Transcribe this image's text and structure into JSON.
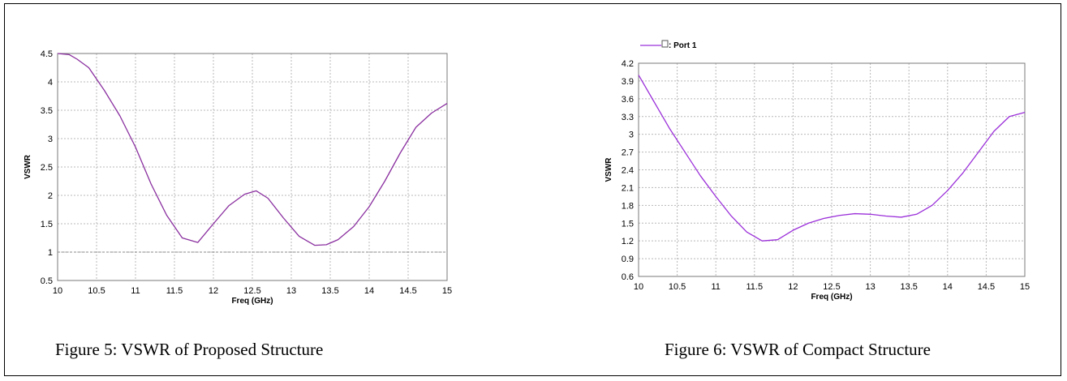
{
  "chart_data": [
    {
      "type": "line",
      "title": "",
      "xlabel": "Freq (GHz)",
      "ylabel": "VSWR",
      "xlim": [
        10,
        15
      ],
      "ylim": [
        0.5,
        4.5
      ],
      "xticks": [
        "10",
        "10.5",
        "11",
        "11.5",
        "12",
        "12.5",
        "13",
        "13.5",
        "14",
        "14.5",
        "15"
      ],
      "yticks": [
        "0.5",
        "1",
        "1.5",
        "2",
        "2.5",
        "3",
        "3.5",
        "4",
        "4.5"
      ],
      "grid": true,
      "reference_line_y": 1,
      "legend": null,
      "series": [
        {
          "color": "#8a2f9f",
          "x": [
            10,
            10.15,
            10.25,
            10.4,
            10.5,
            10.6,
            10.8,
            11.0,
            11.2,
            11.4,
            11.6,
            11.8,
            12.0,
            12.2,
            12.4,
            12.55,
            12.7,
            12.9,
            13.1,
            13.3,
            13.45,
            13.6,
            13.8,
            14.0,
            14.2,
            14.4,
            14.6,
            14.8,
            15.0
          ],
          "y": [
            4.5,
            4.48,
            4.4,
            4.25,
            4.05,
            3.85,
            3.4,
            2.85,
            2.2,
            1.65,
            1.25,
            1.17,
            1.5,
            1.82,
            2.02,
            2.08,
            1.95,
            1.6,
            1.28,
            1.12,
            1.13,
            1.22,
            1.45,
            1.8,
            2.25,
            2.75,
            3.2,
            3.45,
            3.62
          ]
        }
      ]
    },
    {
      "type": "line",
      "title": "",
      "xlabel": "Freq (GHz)",
      "ylabel": "VSWR",
      "xlim": [
        10,
        15
      ],
      "ylim": [
        0.6,
        4.2
      ],
      "xticks": [
        "10",
        "10.5",
        "11",
        "11.5",
        "12",
        "12.5",
        "13",
        "13.5",
        "14",
        "14.5",
        "15"
      ],
      "yticks": [
        "0.6",
        "0.9",
        "1.2",
        "1.5",
        "1.8",
        "2.1",
        "2.4",
        "2.7",
        "3",
        "3.3",
        "3.6",
        "3.9",
        "4.2"
      ],
      "grid": true,
      "legend": "top-left",
      "series": [
        {
          "name": ": Port 1",
          "color": "#9b30d9",
          "x": [
            10,
            10.2,
            10.4,
            10.6,
            10.8,
            11.0,
            11.2,
            11.4,
            11.6,
            11.8,
            12.0,
            12.2,
            12.4,
            12.6,
            12.8,
            13.0,
            13.2,
            13.4,
            13.6,
            13.8,
            14.0,
            14.2,
            14.4,
            14.6,
            14.8,
            15.0
          ],
          "y": [
            4.0,
            3.55,
            3.1,
            2.7,
            2.3,
            1.95,
            1.62,
            1.35,
            1.2,
            1.22,
            1.38,
            1.5,
            1.58,
            1.63,
            1.66,
            1.65,
            1.62,
            1.6,
            1.65,
            1.8,
            2.05,
            2.35,
            2.7,
            3.05,
            3.3,
            3.37
          ]
        }
      ]
    }
  ],
  "captions": {
    "figure5": "Figure 5: VSWR of Proposed Structure",
    "figure6": "Figure 6: VSWR of Compact Structure"
  }
}
